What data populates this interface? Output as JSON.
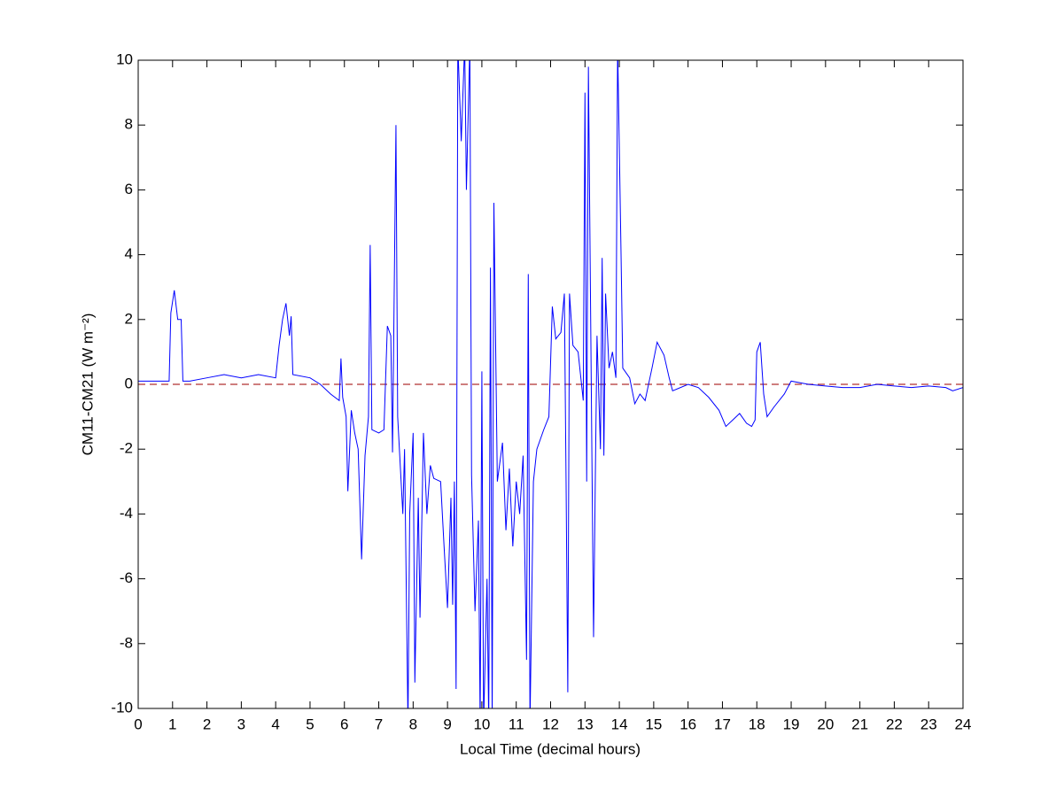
{
  "chart_data": {
    "type": "line",
    "xlabel": "Local Time (decimal hours)",
    "ylabel": "CM11-CM21 (W m⁻²)",
    "xlim": [
      0,
      24
    ],
    "ylim": [
      -10,
      10
    ],
    "xticks": [
      0,
      1,
      2,
      3,
      4,
      5,
      6,
      7,
      8,
      9,
      10,
      11,
      12,
      13,
      14,
      15,
      16,
      17,
      18,
      19,
      20,
      21,
      22,
      23,
      24
    ],
    "yticks": [
      -10,
      -8,
      -6,
      -4,
      -2,
      0,
      2,
      4,
      6,
      8,
      10
    ],
    "reference_line": {
      "value": 0,
      "color": "#b03030",
      "style": "dashed"
    },
    "series": [
      {
        "color": "#0000ff",
        "x": [
          0,
          0.5,
          0.9,
          0.95,
          1.05,
          1.15,
          1.25,
          1.3,
          1.5,
          2,
          2.5,
          3,
          3.5,
          4,
          4.1,
          4.2,
          4.3,
          4.4,
          4.45,
          4.5,
          5,
          5.3,
          5.6,
          5.85,
          5.9,
          5.95,
          6.05,
          6.1,
          6.2,
          6.3,
          6.4,
          6.5,
          6.6,
          6.7,
          6.75,
          6.8,
          7,
          7.15,
          7.25,
          7.35,
          7.4,
          7.5,
          7.55,
          7.7,
          7.75,
          7.85,
          7.9,
          8,
          8.05,
          8.15,
          8.2,
          8.3,
          8.4,
          8.5,
          8.6,
          8.8,
          8.9,
          9,
          9.1,
          9.15,
          9.2,
          9.25,
          9.3,
          9.4,
          9.5,
          9.55,
          9.65,
          9.7,
          9.8,
          9.9,
          9.95,
          10,
          10.05,
          10.15,
          10.2,
          10.25,
          10.3,
          10.35,
          10.45,
          10.6,
          10.7,
          10.8,
          10.9,
          11,
          11.1,
          11.2,
          11.3,
          11.35,
          11.4,
          11.5,
          11.6,
          11.8,
          11.95,
          12.05,
          12.15,
          12.3,
          12.4,
          12.45,
          12.5,
          12.55,
          12.65,
          12.8,
          12.95,
          13,
          13.05,
          13.1,
          13.2,
          13.25,
          13.3,
          13.35,
          13.45,
          13.5,
          13.55,
          13.6,
          13.7,
          13.8,
          13.9,
          13.95,
          14.05,
          14.1,
          14.3,
          14.45,
          14.6,
          14.75,
          14.95,
          15.1,
          15.3,
          15.45,
          15.55,
          16,
          16.3,
          16.6,
          16.9,
          17.1,
          17.3,
          17.5,
          17.7,
          17.85,
          17.95,
          18,
          18.1,
          18.2,
          18.3,
          18.5,
          18.8,
          19,
          19.5,
          20,
          20.5,
          21,
          21.5,
          22,
          22.5,
          23,
          23.5,
          23.7,
          24
        ],
        "values": [
          0.1,
          0.1,
          0.1,
          2.2,
          2.9,
          2.0,
          2.0,
          0.1,
          0.1,
          0.2,
          0.3,
          0.2,
          0.3,
          0.2,
          1.2,
          2.0,
          2.5,
          1.5,
          2.1,
          0.3,
          0.2,
          0.0,
          -0.3,
          -0.5,
          0.8,
          -0.4,
          -1.0,
          -3.3,
          -0.8,
          -1.5,
          -2.0,
          -5.4,
          -2.2,
          -1.0,
          4.3,
          -1.4,
          -1.5,
          -1.4,
          1.8,
          1.5,
          -2.1,
          8.0,
          -1.0,
          -4.0,
          -2.0,
          -10.5,
          -4.0,
          -1.5,
          -9.2,
          -3.5,
          -7.2,
          -1.5,
          -4.0,
          -2.5,
          -2.9,
          -3.0,
          -5.0,
          -6.9,
          -3.5,
          -6.8,
          -3.0,
          -9.4,
          10.5,
          7.5,
          10.5,
          6.0,
          10.5,
          -2.8,
          -7.0,
          -4.2,
          -10.5,
          0.4,
          -10.5,
          -6.0,
          -10.5,
          3.6,
          -10.5,
          5.6,
          -3.0,
          -1.8,
          -4.5,
          -2.6,
          -5.0,
          -3.0,
          -4.0,
          -2.2,
          -8.5,
          3.4,
          -10.5,
          -3.0,
          -2.0,
          -1.4,
          -1.0,
          2.4,
          1.4,
          1.6,
          2.8,
          -3.0,
          -9.5,
          2.8,
          1.2,
          1.0,
          -0.5,
          9.0,
          -3.0,
          9.8,
          -2.0,
          -7.8,
          -3.0,
          1.5,
          -2.0,
          3.9,
          -2.2,
          2.8,
          0.5,
          1.0,
          0.2,
          10.5,
          4.0,
          0.5,
          0.2,
          -0.6,
          -0.3,
          -0.5,
          0.5,
          1.3,
          0.9,
          0.2,
          -0.2,
          0.0,
          -0.1,
          -0.4,
          -0.8,
          -1.3,
          -1.1,
          -0.9,
          -1.2,
          -1.3,
          -1.1,
          1.0,
          1.3,
          -0.3,
          -1.0,
          -0.7,
          -0.3,
          0.1,
          0.0,
          -0.05,
          -0.1,
          -0.1,
          0.0,
          -0.05,
          -0.1,
          -0.05,
          -0.1,
          -0.2,
          -0.1
        ]
      }
    ]
  }
}
